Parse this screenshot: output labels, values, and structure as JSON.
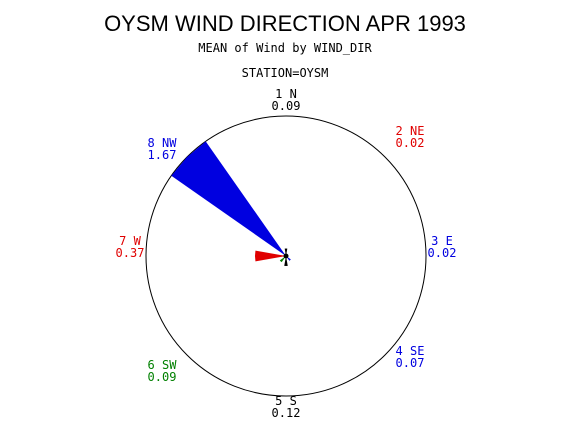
{
  "chart_data": {
    "type": "wind-rose",
    "title": "OYSM WIND DIRECTION APR 1993",
    "subtitle": "MEAN of Wind by WIND_DIR",
    "station_label": "STATION=OYSM",
    "directions": [
      {
        "label": "1 N",
        "value": 0.09,
        "value_text": "0.09",
        "color": "#000000"
      },
      {
        "label": "2 NE",
        "value": 0.02,
        "value_text": "0.02",
        "color": "#e00000"
      },
      {
        "label": "3 E",
        "value": 0.02,
        "value_text": "0.02",
        "color": "#0000e0"
      },
      {
        "label": "4 SE",
        "value": 0.07,
        "value_text": "0.07",
        "color": "#0000e0"
      },
      {
        "label": "5 S",
        "value": 0.12,
        "value_text": "0.12",
        "color": "#000000"
      },
      {
        "label": "6 SW",
        "value": 0.09,
        "value_text": "0.09",
        "color": "#008000"
      },
      {
        "label": "7 W",
        "value": 0.37,
        "value_text": "0.37",
        "color": "#e00000"
      },
      {
        "label": "8 NW",
        "value": 1.67,
        "value_text": "1.67",
        "color": "#0000e0"
      }
    ],
    "max_value": 1.67
  }
}
